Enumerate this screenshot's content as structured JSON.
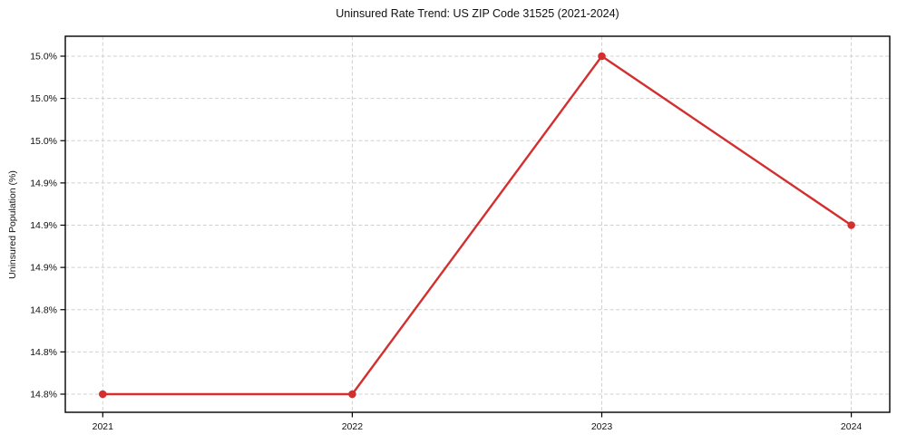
{
  "chart_data": {
    "type": "line",
    "title": "Uninsured Rate Trend: US ZIP Code 31525 (2021-2024)",
    "xlabel": "",
    "ylabel": "Uninsured Population (%)",
    "x": [
      2021,
      2022,
      2023,
      2024
    ],
    "x_tick_labels": [
      "2021",
      "2022",
      "2023",
      "2024"
    ],
    "series": [
      {
        "name": "Uninsured rate",
        "values": [
          14.8,
          14.8,
          15.0,
          14.9
        ]
      }
    ],
    "y_ticks": [
      14.8,
      14.825,
      14.85,
      14.875,
      14.9,
      14.925,
      14.95,
      14.975,
      15.0
    ],
    "y_tick_labels": [
      "14.8%",
      "14.8%",
      "14.8%",
      "14.9%",
      "14.9%",
      "14.9%",
      "15.0%",
      "15.0%",
      "15.0%"
    ],
    "ylim": [
      14.789,
      15.011
    ],
    "xlim": [
      2020.85,
      2024.15
    ],
    "grid": true,
    "grid_style": "dashed",
    "legend": false,
    "marker": "circle",
    "colors": {
      "line": "#d32f2f",
      "marker": "#d32f2f",
      "grid": "#d0d0d0",
      "axis": "#000000",
      "text": "#111111",
      "background": "#ffffff"
    }
  }
}
